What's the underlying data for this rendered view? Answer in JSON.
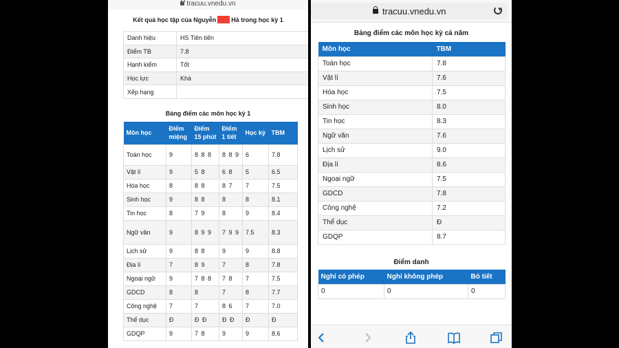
{
  "left": {
    "url": "tracuu.vnedu.vn",
    "title_prefix": "Kết quả học tập của Nguyễn",
    "title_suffix": "Hà trong học kỳ 1",
    "info": [
      {
        "label": "Danh hiệu",
        "value": "HS Tiên tiến"
      },
      {
        "label": "Điểm TB",
        "value": "7.8"
      },
      {
        "label": "Hạnh kiểm",
        "value": "Tốt"
      },
      {
        "label": "Học lực",
        "value": "Khá"
      },
      {
        "label": "Xếp hạng",
        "value": ""
      }
    ],
    "grades_title": "Bảng điểm các môn học kỳ 1",
    "grades_headers": [
      "Môn học",
      "Điểm miệng",
      "Điểm 15 phút",
      "Điểm 1 tiết",
      "Học kỳ",
      "TBM"
    ],
    "grades_rows": [
      [
        "Toán học",
        "9",
        "8 8 8",
        "8 8 9",
        "6",
        "7.8"
      ],
      [
        "Vật lí",
        "9",
        "5 8",
        "6 8",
        "5",
        "6.5"
      ],
      [
        "Hóa học",
        "8",
        "8 8",
        "8 7",
        "7",
        "7.5"
      ],
      [
        "Sinh học",
        "9",
        "8 8",
        "8",
        "8",
        "8.1"
      ],
      [
        "Tin học",
        "8",
        "7 9",
        "8",
        "9",
        "8.4"
      ],
      [
        "Ngữ văn",
        "9",
        "8 9 9",
        "7 9 9",
        "7.5",
        "8.3"
      ],
      [
        "Lịch sử",
        "9",
        "8 8",
        "9",
        "9",
        "8.8"
      ],
      [
        "Địa lí",
        "7",
        "8 9",
        "7",
        "8",
        "7.8"
      ],
      [
        "Ngoại ngữ",
        "9",
        "7 8 8",
        "7 8",
        "7",
        "7.5"
      ],
      [
        "GDCD",
        "8",
        "8",
        "7",
        "8",
        "7.7"
      ],
      [
        "Công nghệ",
        "7",
        "7",
        "8 6",
        "7",
        "7.0"
      ],
      [
        "Thể dục",
        "Đ",
        "Đ Đ",
        "Đ Đ",
        "Đ",
        "Đ"
      ],
      [
        "GDQP",
        "9",
        "7 8",
        "9",
        "9",
        "8.6"
      ]
    ]
  },
  "right": {
    "url": "tracuu.vnedu.vn",
    "year_title": "Bảng điểm các môn học kỳ cả năm",
    "year_headers": [
      "Môn học",
      "TBM"
    ],
    "year_rows": [
      [
        "Toán học",
        "7.8"
      ],
      [
        "Vật lí",
        "7.6"
      ],
      [
        "Hóa học",
        "7.5"
      ],
      [
        "Sinh học",
        "8.0"
      ],
      [
        "Tin học",
        "8.3"
      ],
      [
        "Ngữ văn",
        "7.6"
      ],
      [
        "Lịch sử",
        "9.0"
      ],
      [
        "Địa lí",
        "8.6"
      ],
      [
        "Ngoại ngữ",
        "7.5"
      ],
      [
        "GDCD",
        "7.8"
      ],
      [
        "Công nghệ",
        "7.2"
      ],
      [
        "Thể dục",
        "Đ"
      ],
      [
        "GDQP",
        "8.7"
      ]
    ],
    "attendance_title": "Điểm danh",
    "attendance_headers": [
      "Nghỉ có phép",
      "Nghỉ không phép",
      "Bỏ tiết"
    ],
    "attendance_values": [
      "0",
      "0",
      "0"
    ]
  },
  "toolbar_icons": [
    "back-icon",
    "forward-icon",
    "share-icon",
    "bookmarks-icon",
    "tabs-icon"
  ],
  "colors": {
    "header_blue": "#1a73c4",
    "redacted": "#f04034"
  }
}
